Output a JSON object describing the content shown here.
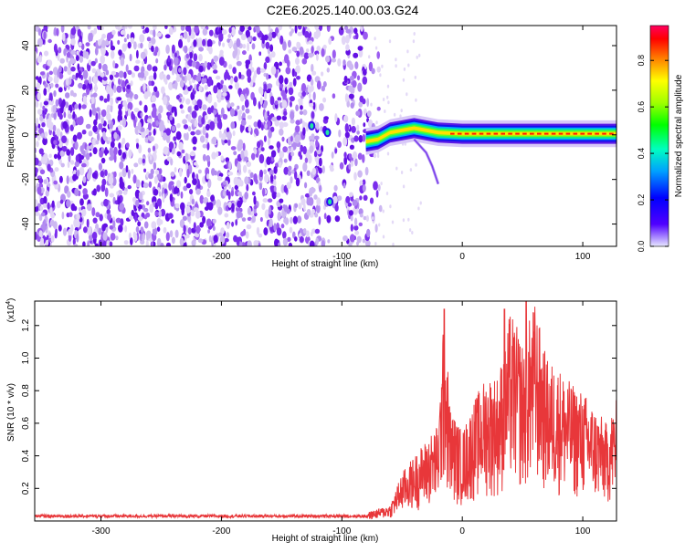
{
  "page_title": "C2E6.2025.140.00.03.G24",
  "colors": {
    "snr_line": "#e8373a",
    "spectrogram_low": "#dcd0f4",
    "spectrogram_mid": "#6a16e6",
    "frame": "#000000"
  },
  "chart_data": [
    {
      "type": "heatmap",
      "title": "C2E6.2025.140.00.03.G24",
      "xlabel": "Height of straight line (km)",
      "ylabel": "Frequency (Hz)",
      "xlim": [
        -355,
        128
      ],
      "ylim": [
        -50,
        49
      ],
      "xticks": [
        -300,
        -200,
        -100,
        0,
        100
      ],
      "yticks": [
        -40,
        -20,
        0,
        20,
        40
      ],
      "colorbar": {
        "label": "Normalized spectral amplitude",
        "range": [
          0.0,
          0.95
        ],
        "ticks": [
          0.0,
          0.2,
          0.4,
          0.6,
          0.8
        ],
        "colormap": [
          "#d0d0ff",
          "#3300ff",
          "#0000ff",
          "#00c8ff",
          "#00ff66",
          "#66ff00",
          "#ffff00",
          "#ff8800",
          "#ff0000",
          "#ff0066"
        ]
      },
      "features": {
        "noise_region_x": [
          -355,
          -80
        ],
        "gap_x": [
          -120,
          -98
        ],
        "signal_track": [
          {
            "x": -80,
            "y": -3
          },
          {
            "x": -70,
            "y": -2
          },
          {
            "x": -60,
            "y": 1
          },
          {
            "x": -50,
            "y": 2
          },
          {
            "x": -40,
            "y": 3
          },
          {
            "x": -30,
            "y": 2
          },
          {
            "x": -20,
            "y": 1
          },
          {
            "x": 0,
            "y": 0.5
          },
          {
            "x": 40,
            "y": 0.5
          },
          {
            "x": 80,
            "y": 0.5
          },
          {
            "x": 128,
            "y": 0.5
          }
        ],
        "tail_curve": [
          {
            "x": -40,
            "y": -2
          },
          {
            "x": -30,
            "y": -8
          },
          {
            "x": -25,
            "y": -14
          },
          {
            "x": -20,
            "y": -22
          }
        ],
        "isolated_blobs": [
          {
            "x": -125,
            "y": 4
          },
          {
            "x": -112,
            "y": 1
          },
          {
            "x": -110,
            "y": -30
          }
        ]
      }
    },
    {
      "type": "line",
      "ylabel": "SNR (10 * v/v)",
      "xlabel": "Height of straight line (km)",
      "y_multiplier_label": "(x10",
      "y_multiplier_exp": "4",
      "xlim": [
        -355,
        128
      ],
      "ylim": [
        0,
        1.35
      ],
      "xticks": [
        -300,
        -200,
        -100,
        0,
        100
      ],
      "yticks": [
        0.2,
        0.4,
        0.6,
        0.8,
        1.0,
        1.2
      ],
      "series": [
        {
          "x": [
            -355,
            -300,
            -250,
            -200,
            -150,
            -100,
            -80,
            -60,
            -50,
            -40,
            -30,
            -20,
            -15,
            -10,
            0,
            10,
            20,
            30,
            40,
            50,
            60,
            70,
            80,
            90,
            100,
            110,
            120,
            128
          ],
          "y": [
            0.03,
            0.03,
            0.03,
            0.03,
            0.035,
            0.04,
            0.05,
            0.1,
            0.3,
            0.4,
            0.5,
            0.6,
            1.3,
            0.7,
            0.55,
            0.75,
            0.9,
            0.9,
            1.3,
            1.1,
            1.35,
            1.0,
            0.95,
            0.85,
            0.8,
            0.7,
            0.6,
            0.75
          ]
        }
      ]
    }
  ]
}
